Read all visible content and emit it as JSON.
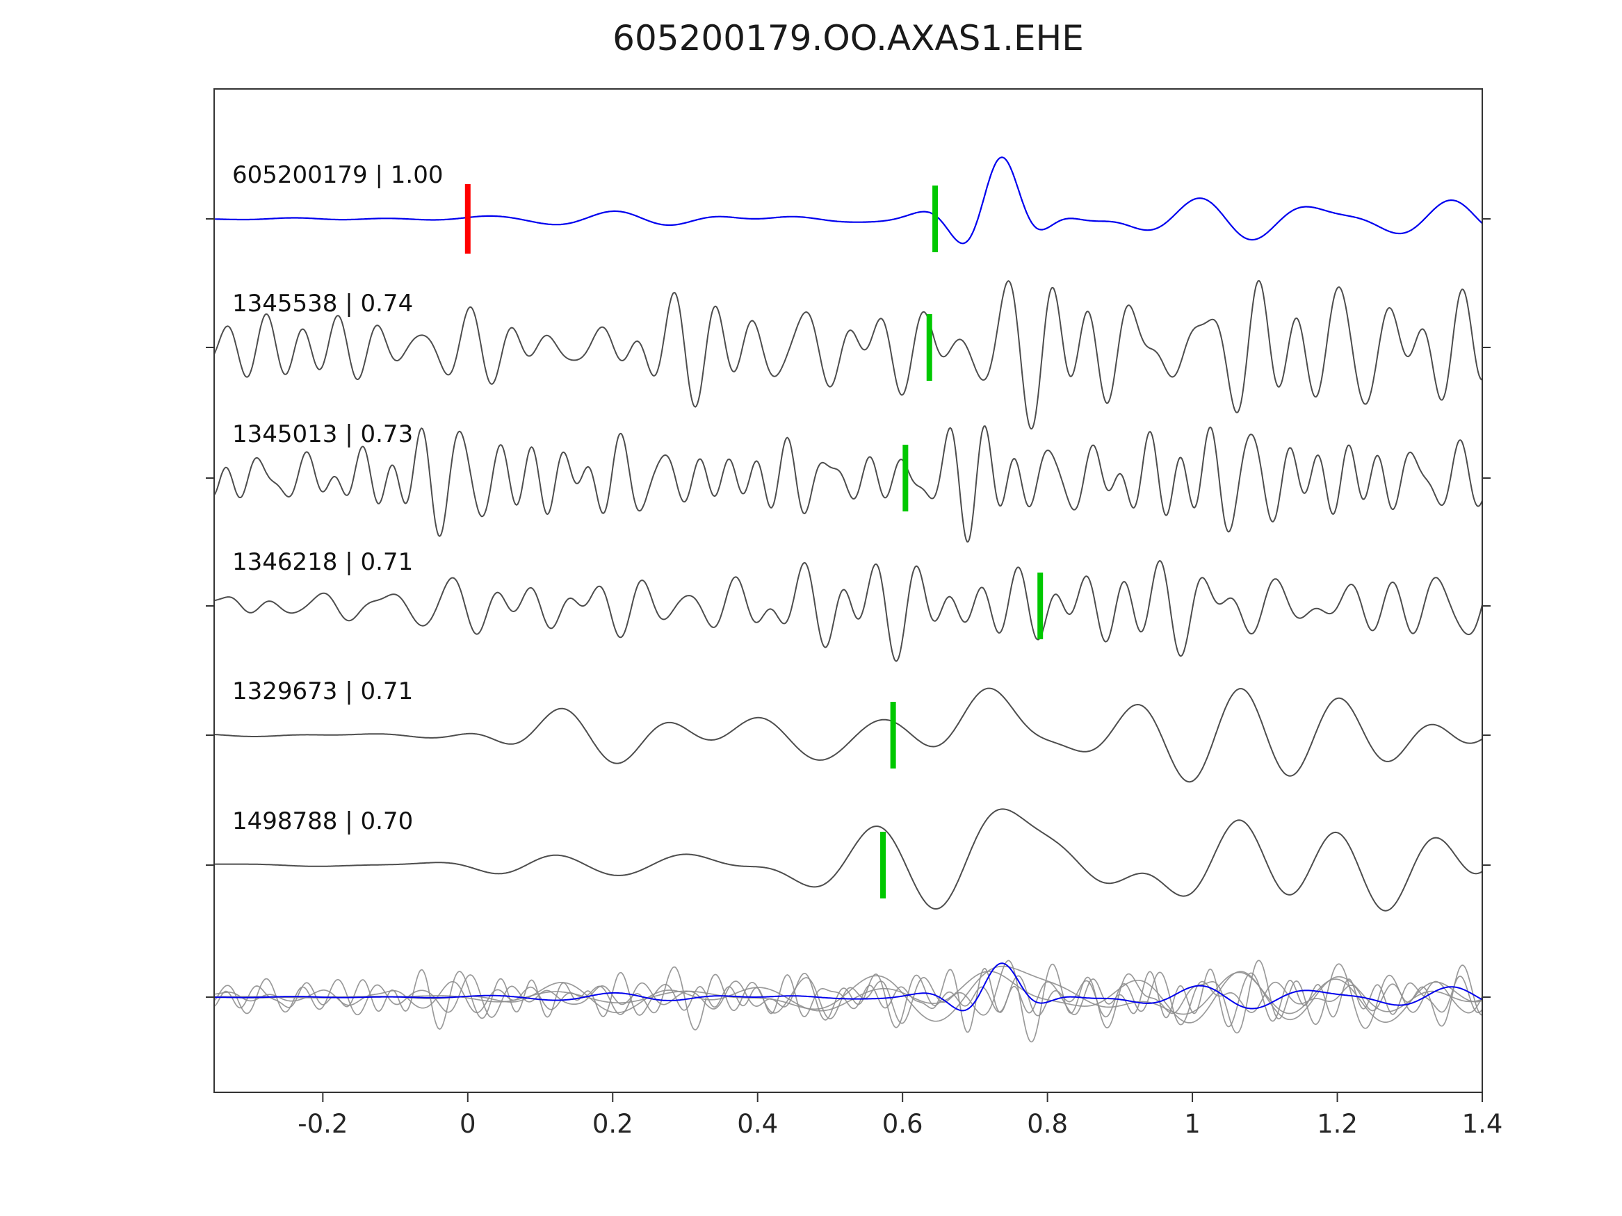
{
  "title": "605200179.OO.AXAS1.EHE",
  "chart_data": {
    "type": "line",
    "title": "605200179.OO.AXAS1.EHE",
    "xlabel": "",
    "ylabel": "",
    "grid": false,
    "legend": "none",
    "xlim": [
      -0.35,
      1.4
    ],
    "xticks": [
      {
        "v": -0.2,
        "label": "-0.2"
      },
      {
        "v": 0,
        "label": "0"
      },
      {
        "v": 0.2,
        "label": "0.2"
      },
      {
        "v": 0.4,
        "label": "0.4"
      },
      {
        "v": 0.6,
        "label": "0.6"
      },
      {
        "v": 0.8,
        "label": "0.8"
      },
      {
        "v": 1,
        "label": "1"
      },
      {
        "v": 1.2,
        "label": "1.2"
      },
      {
        "v": 1.4,
        "label": "1.4"
      }
    ],
    "colors": {
      "axis": "#333333",
      "tick_label": "#262626",
      "trace_label": "#111111",
      "template": "#0000ee",
      "detection": "#4d4d4d",
      "overlay_gray": "#8f8f8f",
      "pick_marker": "#00c800",
      "onset_marker": "#ff0000"
    },
    "traces": [
      {
        "id": "605200179",
        "label": "605200179 | 1.00",
        "correlation": 1.0,
        "role": "template",
        "color": "#0000ee",
        "pick_time": 0.645,
        "onset_time": 0.0,
        "scale": 100,
        "waveform_synthesis": {
          "seed": 101,
          "band": [
            4.5,
            11
          ],
          "pre": 0.03,
          "steps": [
            {
              "t": 0.02,
              "w": 0.04,
              "a": 0.14
            },
            {
              "t": 0.72,
              "w": 0.08,
              "a": 0.22
            }
          ],
          "pulses": [
            {
              "c": 0.735,
              "w": 0.06,
              "f": 7,
              "a": 1.05
            }
          ]
        }
      },
      {
        "id": "1345538",
        "label": "1345538 | 0.74",
        "correlation": 0.74,
        "role": "detection",
        "color": "#4d4d4d",
        "pick_time": 0.637,
        "scale": 85,
        "waveform_synthesis": {
          "seed": 202,
          "band": [
            9,
            26
          ],
          "pre": 0.8,
          "steps": [
            {
              "t": 0.6,
              "w": 0.1,
              "a": 0.25
            }
          ],
          "pulses": []
        }
      },
      {
        "id": "1345013",
        "label": "1345013 | 0.73",
        "correlation": 0.73,
        "role": "detection",
        "color": "#4d4d4d",
        "pick_time": 0.604,
        "scale": 85,
        "waveform_synthesis": {
          "seed": 303,
          "band": [
            9,
            27
          ],
          "pre": 0.85,
          "steps": [
            {
              "t": 0.55,
              "w": 0.1,
              "a": 0.2
            }
          ],
          "pulses": []
        }
      },
      {
        "id": "1346218",
        "label": "1346218 | 0.71",
        "correlation": 0.71,
        "role": "detection",
        "color": "#4d4d4d",
        "pick_time": 0.79,
        "scale": 85,
        "waveform_synthesis": {
          "seed": 404,
          "band": [
            8,
            24
          ],
          "pre": 0.8,
          "steps": [
            {
              "t": 0.5,
              "w": 0.2,
              "a": 0.15
            }
          ],
          "pulses": []
        }
      },
      {
        "id": "1329673",
        "label": "1329673 | 0.71",
        "correlation": 0.71,
        "role": "detection",
        "color": "#4d4d4d",
        "pick_time": 0.587,
        "scale": 100,
        "waveform_synthesis": {
          "seed": 505,
          "band": [
            3.5,
            9
          ],
          "pre": 0.03,
          "steps": [
            {
              "t": 0.02,
              "w": 0.04,
              "a": 0.3
            },
            {
              "t": 0.55,
              "w": 0.1,
              "a": 0.35
            }
          ],
          "pulses": [
            {
              "c": 0.72,
              "w": 0.09,
              "f": 4.5,
              "a": 0.95
            }
          ]
        }
      },
      {
        "id": "1498788",
        "label": "1498788 | 0.70",
        "correlation": 0.7,
        "role": "detection",
        "color": "#4d4d4d",
        "pick_time": 0.573,
        "scale": 105,
        "waveform_synthesis": {
          "seed": 606,
          "band": [
            3,
            8
          ],
          "pre": 0.04,
          "steps": [
            {
              "t": 0.02,
              "w": 0.04,
              "a": 0.35
            },
            {
              "t": 0.55,
              "w": 0.1,
              "a": 0.4
            }
          ],
          "pulses": [
            {
              "c": 0.73,
              "w": 0.1,
              "f": 4,
              "a": 1.0
            }
          ]
        }
      }
    ],
    "overlay_panel": {
      "contains": [
        "1345538",
        "1345013",
        "1346218",
        "1329673",
        "1498788",
        "605200179"
      ],
      "gray_traces": 5,
      "blue_trace": "605200179"
    }
  }
}
